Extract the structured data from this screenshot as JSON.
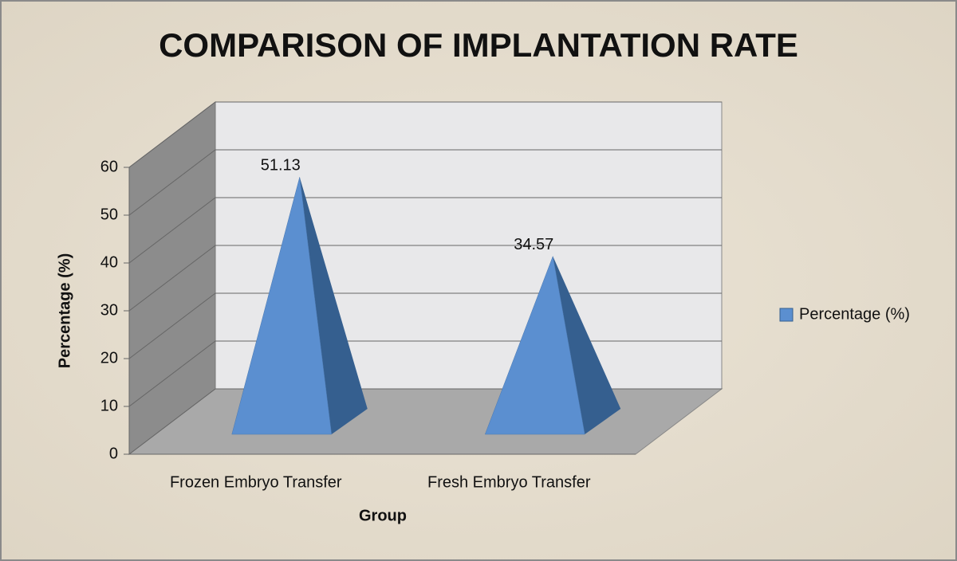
{
  "chart_data": {
    "type": "bar",
    "style": "3d-pyramid",
    "title": "COMPARISON OF IMPLANTATION RATE",
    "x_label": "Group",
    "y_label": "Percentage (%)",
    "categories": [
      "Frozen Embryo Transfer",
      "Fresh Embryo Transfer"
    ],
    "series": [
      {
        "name": "Percentage (%)",
        "color": "#5b8fd0",
        "values": [
          51.13,
          34.57
        ]
      }
    ],
    "ylim": [
      0,
      60
    ],
    "yticks": [
      0,
      10,
      20,
      30,
      40,
      50,
      60
    ],
    "grid": true,
    "legend": "right",
    "data_labels": true
  }
}
